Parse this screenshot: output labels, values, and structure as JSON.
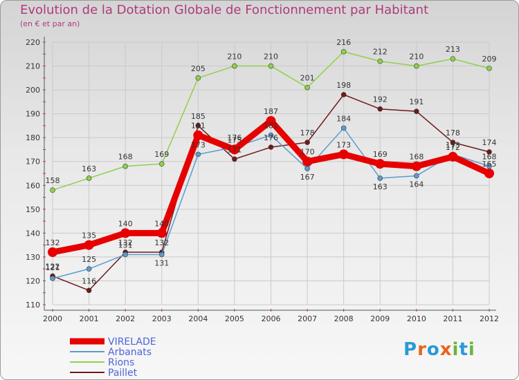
{
  "header": {
    "title": "Evolution de la Dotation Globale de Fonctionnement par Habitant",
    "subtitle": "(en € et par an)"
  },
  "logo": {
    "text": "Proxiti",
    "colors": [
      "#2a9ad6",
      "#e8641a",
      "#2a9ad6",
      "#e8641a",
      "#6cb33f",
      "#2a9ad6",
      "#6cb33f"
    ]
  },
  "chart_data": {
    "type": "line",
    "title": "Evolution de la Dotation Globale de Fonctionnement par Habitant",
    "subtitle": "(en € et par an)",
    "xlabel": "",
    "ylabel": "",
    "x": [
      "2000",
      "2001",
      "2002",
      "2003",
      "2004",
      "2005",
      "2006",
      "2007",
      "2008",
      "2009",
      "2010",
      "2011",
      "2012"
    ],
    "ylim": [
      110,
      220
    ],
    "yticks": [
      110,
      120,
      130,
      140,
      150,
      160,
      170,
      180,
      190,
      200,
      210,
      220
    ],
    "grid": true,
    "legend": "bottom-left",
    "series": [
      {
        "name": "VIRELADE",
        "color": "#e60000",
        "values": [
          132,
          135,
          140,
          140,
          181,
          175,
          187,
          170,
          173,
          169,
          168,
          172,
          165
        ]
      },
      {
        "name": "Arbanats",
        "color": "#5b9bd0",
        "values": [
          121,
          125,
          131,
          131,
          173,
          176,
          181,
          167,
          184,
          163,
          164,
          173,
          168
        ]
      },
      {
        "name": "Rions",
        "color": "#8ed04a",
        "values": [
          158,
          163,
          168,
          169,
          205,
          210,
          210,
          201,
          216,
          212,
          210,
          213,
          209
        ]
      },
      {
        "name": "Paillet",
        "color": "#6e1a1a",
        "values": [
          122,
          116,
          132,
          132,
          185,
          171,
          176,
          178,
          198,
          192,
          191,
          178,
          174
        ]
      }
    ]
  }
}
